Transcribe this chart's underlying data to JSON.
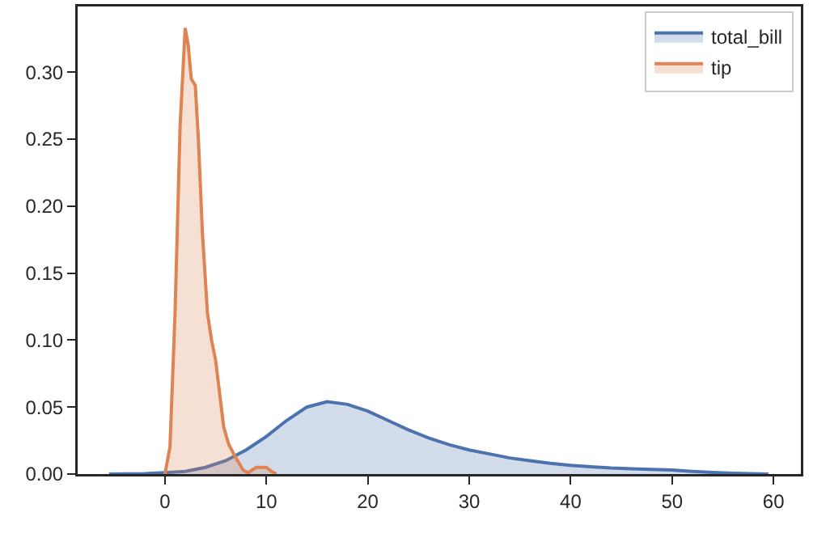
{
  "chart_data": {
    "type": "area",
    "legend": "top right",
    "grid": false,
    "xlim": [
      -8.6,
      62.7
    ],
    "ylim": [
      0,
      0.349
    ],
    "xticks": [
      0,
      10,
      20,
      30,
      40,
      50,
      60
    ],
    "yticks": [
      {
        "value": 0,
        "label": "0.00"
      },
      {
        "value": 0.05,
        "label": "0.05"
      },
      {
        "value": 0.1,
        "label": "0.10"
      },
      {
        "value": 0.15,
        "label": "0.15"
      },
      {
        "value": 0.2,
        "label": "0.20"
      },
      {
        "value": 0.25,
        "label": "0.25"
      },
      {
        "value": 0.3,
        "label": "0.30"
      }
    ],
    "series": [
      {
        "name": "total_bill",
        "color": "#4c72b0",
        "x": [
          -5.5,
          -2,
          0,
          2,
          4,
          6,
          8,
          10,
          12,
          14,
          16,
          18,
          20,
          22,
          24,
          26,
          28,
          30,
          32,
          34,
          36,
          38,
          40,
          42,
          44,
          46,
          48,
          50,
          52,
          54,
          56,
          59.5
        ],
        "values": [
          0,
          0.0003,
          0.001,
          0.002,
          0.005,
          0.01,
          0.018,
          0.028,
          0.04,
          0.05,
          0.054,
          0.052,
          0.047,
          0.04,
          0.033,
          0.027,
          0.022,
          0.018,
          0.015,
          0.012,
          0.01,
          0.008,
          0.0065,
          0.0055,
          0.0045,
          0.004,
          0.0035,
          0.003,
          0.002,
          0.0012,
          0.0006,
          0
        ]
      },
      {
        "name": "tip",
        "color": "#dd8452",
        "x": [
          0,
          0.5,
          1,
          1.5,
          2,
          2.3,
          2.6,
          3,
          3.3,
          3.7,
          4.2,
          4.6,
          5,
          5.4,
          5.8,
          6.3,
          7,
          7.7,
          8.2,
          9,
          10,
          10.5,
          11
        ],
        "values": [
          0,
          0.02,
          0.12,
          0.26,
          0.333,
          0.32,
          0.295,
          0.29,
          0.25,
          0.18,
          0.12,
          0.1,
          0.085,
          0.06,
          0.035,
          0.022,
          0.012,
          0.003,
          0.001,
          0.005,
          0.005,
          0.002,
          0
        ]
      }
    ]
  }
}
